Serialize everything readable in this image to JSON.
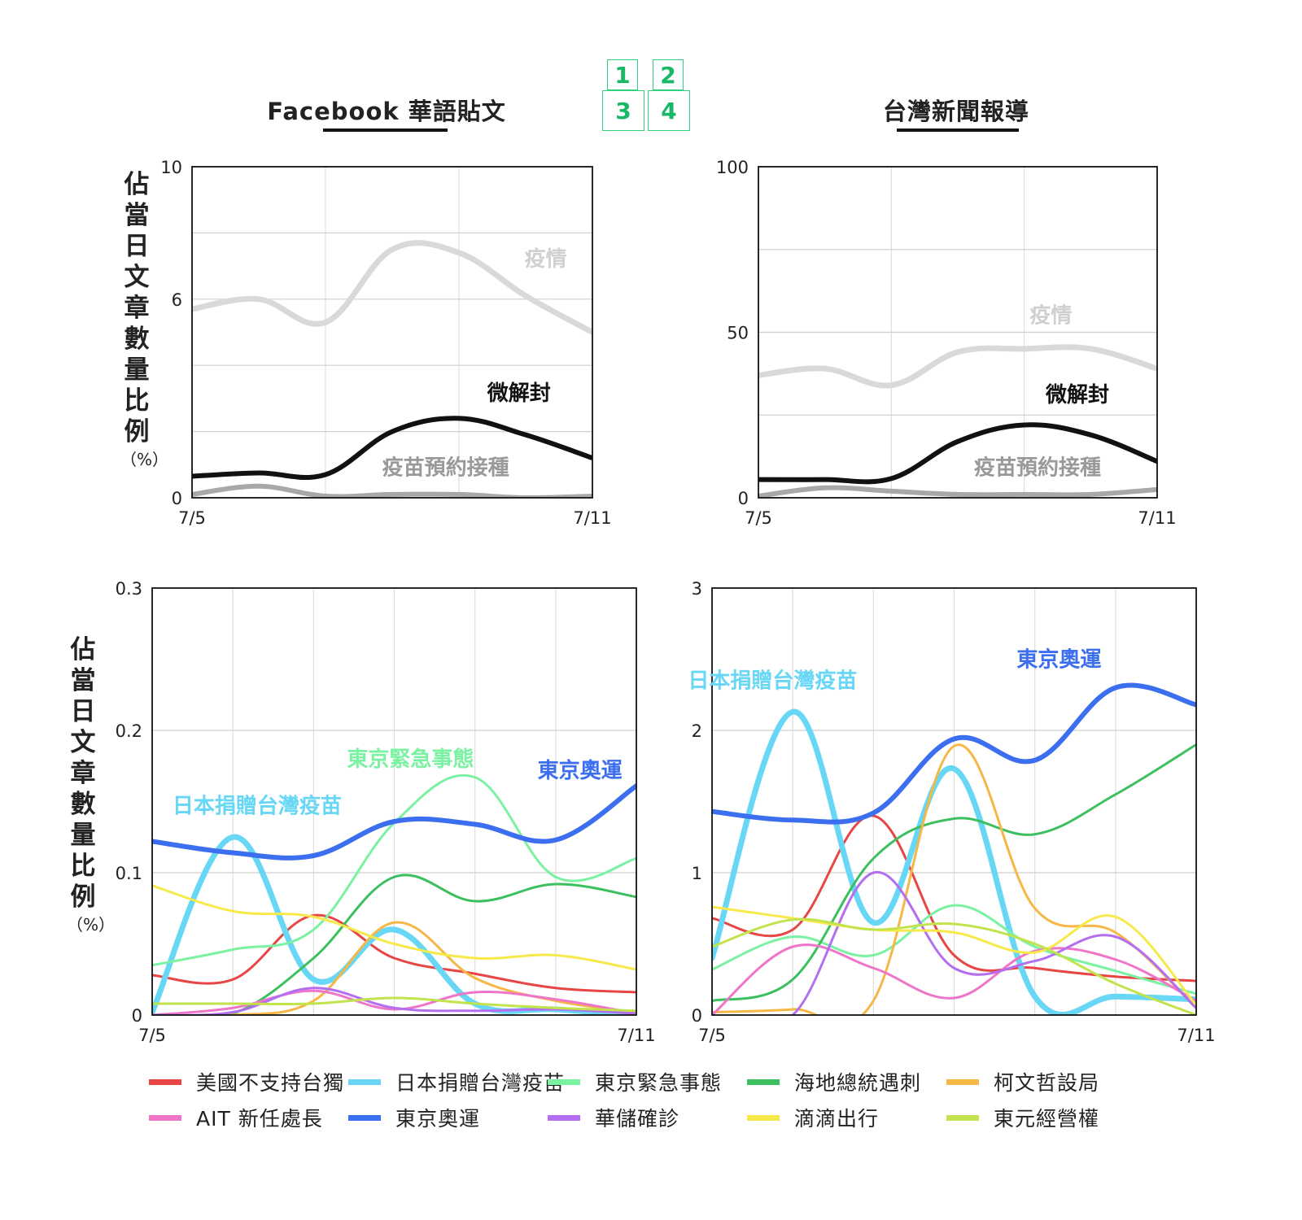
{
  "pager": [
    "1",
    "2",
    "3",
    "4"
  ],
  "titles": {
    "left": "Facebook 華語貼文",
    "right": "台灣新聞報導"
  },
  "ylabel": {
    "text": "佔當日文章數量比例",
    "unit": "（%）"
  },
  "colors": {
    "美國不支持台獨": "#e84545",
    "日本捐贈台灣疫苗": "#67d7f5",
    "東京緊急事態": "#7bf2a2",
    "海地總統遇刺": "#3cbf5e",
    "柯文哲設局": "#f5b745",
    "AIT新任處長": "#ef75c8",
    "東京奧運": "#3c6ef0",
    "華儲確診": "#b46ef0",
    "滴滴出行": "#f7e94a",
    "東元經營權": "#c2e34e"
  },
  "legend": [
    "美國不支持台獨",
    "日本捐贈台灣疫苗",
    "東京緊急事態",
    "海地總統遇刺",
    "柯文哲設局",
    "AIT 新任處長",
    "東京奧運",
    "華儲確診",
    "滴滴出行",
    "東元經營權"
  ],
  "chart_data": [
    {
      "id": "fb-top",
      "type": "line",
      "title": "Facebook 華語貼文",
      "ylabel": "佔當日文章數量比例（%）",
      "x": [
        "7/5",
        "7/6",
        "7/7",
        "7/8",
        "7/9",
        "7/10",
        "7/11"
      ],
      "x_tick_labels": [
        "7/5",
        "7/11"
      ],
      "ylim": [
        0,
        10
      ],
      "y_ticks": [
        0,
        6,
        10
      ],
      "grid": true,
      "series": [
        {
          "name": "疫情",
          "color": "#d9d9d9",
          "width": 7,
          "values": [
            5.7,
            6.0,
            5.3,
            7.5,
            7.4,
            6.1,
            5.0
          ],
          "label_at": [
            5.3,
            7.0
          ]
        },
        {
          "name": "微解封",
          "color": "#111111",
          "width": 6,
          "values": [
            0.65,
            0.75,
            0.7,
            2.0,
            2.4,
            1.9,
            1.2
          ],
          "label_at": [
            4.9,
            2.95
          ]
        },
        {
          "name": "疫苗預約接種",
          "color": "#a8a8a8",
          "width": 6,
          "values": [
            0.1,
            0.35,
            0.05,
            0.1,
            0.1,
            0.0,
            0.05
          ],
          "label_at": [
            3.8,
            0.7
          ]
        }
      ]
    },
    {
      "id": "news-top",
      "type": "line",
      "title": "台灣新聞報導",
      "ylabel": "佔當日文章數量比例（%）",
      "x": [
        "7/5",
        "7/6",
        "7/7",
        "7/8",
        "7/9",
        "7/10",
        "7/11"
      ],
      "x_tick_labels": [
        "7/5",
        "7/11"
      ],
      "ylim": [
        0,
        100
      ],
      "y_ticks": [
        0,
        50,
        100
      ],
      "grid": true,
      "series": [
        {
          "name": "疫情",
          "color": "#d9d9d9",
          "width": 7,
          "values": [
            37,
            39,
            34,
            44,
            45,
            45,
            39
          ],
          "label_at": [
            4.4,
            53
          ]
        },
        {
          "name": "微解封",
          "color": "#111111",
          "width": 6,
          "values": [
            5.5,
            5.5,
            5.8,
            17,
            22,
            19,
            11
          ],
          "label_at": [
            4.8,
            29
          ]
        },
        {
          "name": "疫苗預約接種",
          "color": "#a8a8a8",
          "width": 6,
          "values": [
            0.5,
            3.0,
            2.0,
            1.0,
            1.0,
            1.0,
            2.5
          ],
          "label_at": [
            4.2,
            7
          ]
        }
      ]
    },
    {
      "id": "fb-bottom",
      "type": "line",
      "ylabel": "佔當日文章數量比例（%）",
      "x": [
        "7/5",
        "7/6",
        "7/7",
        "7/8",
        "7/9",
        "7/10",
        "7/11"
      ],
      "x_tick_labels": [
        "7/5",
        "7/11"
      ],
      "ylim": [
        0,
        0.3
      ],
      "y_ticks": [
        0,
        0.1,
        0.2,
        0.3
      ],
      "grid": true,
      "series": [
        {
          "name": "美國不支持台獨",
          "width": 3,
          "values": [
            0.028,
            0.025,
            0.07,
            0.04,
            0.029,
            0.019,
            0.016
          ]
        },
        {
          "name": "日本捐贈台灣疫苗",
          "width": 7,
          "values": [
            0.002,
            0.125,
            0.025,
            0.06,
            0.008,
            0.004,
            0.0
          ],
          "label_at": [
            1.3,
            0.142
          ]
        },
        {
          "name": "東京緊急事態",
          "width": 3,
          "values": [
            0.035,
            0.046,
            0.06,
            0.135,
            0.167,
            0.097,
            0.11
          ],
          "label_at": [
            3.2,
            0.175
          ]
        },
        {
          "name": "海地總統遇刺",
          "width": 3,
          "values": [
            0.0,
            0.001,
            0.04,
            0.097,
            0.08,
            0.092,
            0.083
          ]
        },
        {
          "name": "柯文哲設局",
          "width": 3,
          "values": [
            0.0,
            0.0,
            0.01,
            0.065,
            0.026,
            0.01,
            0.002
          ]
        },
        {
          "name": "AIT新任處長",
          "width": 3,
          "values": [
            0.0,
            0.005,
            0.017,
            0.004,
            0.016,
            0.011,
            0.001
          ]
        },
        {
          "name": "東京奧運",
          "width": 6,
          "values": [
            0.122,
            0.114,
            0.112,
            0.136,
            0.134,
            0.123,
            0.161
          ],
          "label_at": [
            5.3,
            0.167
          ]
        },
        {
          "name": "華儲確診",
          "width": 3,
          "values": [
            0.0,
            0.002,
            0.019,
            0.005,
            0.003,
            0.004,
            0.001
          ]
        },
        {
          "name": "滴滴出行",
          "width": 3,
          "values": [
            0.091,
            0.073,
            0.069,
            0.05,
            0.04,
            0.042,
            0.032
          ]
        },
        {
          "name": "東元經營權",
          "width": 3,
          "values": [
            0.008,
            0.008,
            0.008,
            0.012,
            0.008,
            0.005,
            0.003
          ]
        }
      ]
    },
    {
      "id": "news-bottom",
      "type": "line",
      "ylabel": "佔當日文章數量比例（%）",
      "x": [
        "7/5",
        "7/6",
        "7/7",
        "7/8",
        "7/9",
        "7/10",
        "7/11"
      ],
      "x_tick_labels": [
        "7/5",
        "7/11"
      ],
      "ylim": [
        0,
        3
      ],
      "y_ticks": [
        0,
        1,
        2,
        3
      ],
      "grid": true,
      "series": [
        {
          "name": "美國不支持台獨",
          "width": 3,
          "values": [
            0.68,
            0.6,
            1.4,
            0.42,
            0.33,
            0.27,
            0.24
          ]
        },
        {
          "name": "日本捐贈台灣疫苗",
          "width": 7,
          "values": [
            0.4,
            2.13,
            0.65,
            1.73,
            0.13,
            0.13,
            0.11
          ],
          "label_at": [
            0.75,
            2.3
          ]
        },
        {
          "name": "東京緊急事態",
          "width": 3,
          "values": [
            0.32,
            0.55,
            0.42,
            0.77,
            0.48,
            0.31,
            0.15
          ]
        },
        {
          "name": "海地總統遇刺",
          "width": 3,
          "values": [
            0.1,
            0.25,
            1.1,
            1.38,
            1.27,
            1.55,
            1.9
          ]
        },
        {
          "name": "柯文哲設局",
          "width": 3,
          "values": [
            0.02,
            0.04,
            0.1,
            1.89,
            0.75,
            0.58,
            0.05
          ]
        },
        {
          "name": "AIT新任處長",
          "width": 3,
          "values": [
            0.0,
            0.48,
            0.33,
            0.12,
            0.45,
            0.39,
            0.1
          ]
        },
        {
          "name": "東京奧運",
          "width": 6,
          "values": [
            1.43,
            1.37,
            1.42,
            1.94,
            1.79,
            2.3,
            2.18
          ],
          "label_at": [
            4.3,
            2.45
          ]
        },
        {
          "name": "華儲確診",
          "width": 3,
          "values": [
            0.0,
            0.0,
            1.0,
            0.33,
            0.38,
            0.55,
            0.05
          ]
        },
        {
          "name": "滴滴出行",
          "width": 3,
          "values": [
            0.76,
            0.68,
            0.6,
            0.58,
            0.44,
            0.69,
            0.07
          ]
        },
        {
          "name": "東元經營權",
          "width": 3,
          "values": [
            0.48,
            0.67,
            0.6,
            0.64,
            0.5,
            0.22,
            0.0
          ]
        }
      ]
    }
  ]
}
